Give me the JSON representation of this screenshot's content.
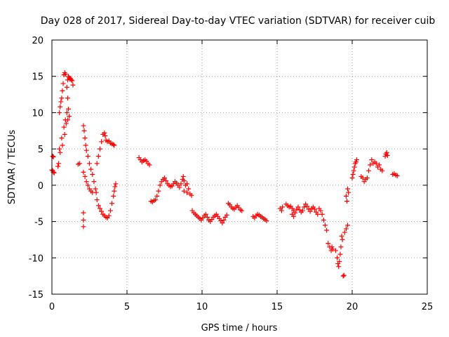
{
  "chart_data": {
    "type": "scatter",
    "title": "Day 028 of 2017, Sidereal Day-to-day VTEC variation (SDTVAR) for receiver cuib",
    "xlabel": "GPS time / hours",
    "ylabel": "SDTVAR / TECUs",
    "xlim": [
      0,
      25
    ],
    "ylim": [
      -15,
      20
    ],
    "xticks": [
      "0",
      "5",
      "10",
      "15",
      "20",
      "25"
    ],
    "yticks": [
      "-15",
      "-10",
      "-5",
      "0",
      "5",
      "10",
      "15",
      "20"
    ],
    "grid": true,
    "marker": "+",
    "color": "#ff0000",
    "series": [
      {
        "name": "SDTVAR",
        "points": [
          [
            0.0,
            2.1
          ],
          [
            0.05,
            2.0
          ],
          [
            0.1,
            1.8
          ],
          [
            0.15,
            1.7
          ],
          [
            0.05,
            4.0
          ],
          [
            0.1,
            3.9
          ],
          [
            0.4,
            2.6
          ],
          [
            0.45,
            3.0
          ],
          [
            0.5,
            5.0
          ],
          [
            0.55,
            4.5
          ],
          [
            0.5,
            10.0
          ],
          [
            0.55,
            10.8
          ],
          [
            0.6,
            11.5
          ],
          [
            0.65,
            12.0
          ],
          [
            0.7,
            13.0
          ],
          [
            0.65,
            6.5
          ],
          [
            0.7,
            5.5
          ],
          [
            0.75,
            14.0
          ],
          [
            0.8,
            15.2
          ],
          [
            0.85,
            15.5
          ],
          [
            0.9,
            15.3
          ],
          [
            0.8,
            8.0
          ],
          [
            0.85,
            7.0
          ],
          [
            0.9,
            9.0
          ],
          [
            0.95,
            8.5
          ],
          [
            1.0,
            10.0
          ],
          [
            1.05,
            12.0
          ],
          [
            1.0,
            13.5
          ],
          [
            1.05,
            14.5
          ],
          [
            1.1,
            15.0
          ],
          [
            1.15,
            14.8
          ],
          [
            1.2,
            14.6
          ],
          [
            1.25,
            14.7
          ],
          [
            1.3,
            14.5
          ],
          [
            1.35,
            14.4
          ],
          [
            1.4,
            13.8
          ],
          [
            1.05,
            9.0
          ],
          [
            1.1,
            10.5
          ],
          [
            1.15,
            9.5
          ],
          [
            1.75,
            2.9
          ],
          [
            1.85,
            3.0
          ],
          [
            2.1,
            8.2
          ],
          [
            2.15,
            7.5
          ],
          [
            2.2,
            6.5
          ],
          [
            2.25,
            5.5
          ],
          [
            2.3,
            4.8
          ],
          [
            2.4,
            4.0
          ],
          [
            2.5,
            3.0
          ],
          [
            2.6,
            2.2
          ],
          [
            2.7,
            1.5
          ],
          [
            2.8,
            0.5
          ],
          [
            2.9,
            -0.5
          ],
          [
            2.95,
            -1.0
          ],
          [
            3.0,
            -2.0
          ],
          [
            3.1,
            -2.8
          ],
          [
            3.2,
            -3.2
          ],
          [
            3.3,
            -3.6
          ],
          [
            3.4,
            -4.0
          ],
          [
            3.5,
            -4.2
          ],
          [
            3.6,
            -4.4
          ],
          [
            3.7,
            -4.5
          ],
          [
            3.8,
            -4.2
          ],
          [
            3.9,
            -3.5
          ],
          [
            4.0,
            -2.5
          ],
          [
            4.1,
            -1.5
          ],
          [
            4.15,
            -0.8
          ],
          [
            4.2,
            -0.2
          ],
          [
            4.25,
            0.2
          ],
          [
            2.1,
            1.8
          ],
          [
            2.2,
            1.2
          ],
          [
            2.3,
            0.5
          ],
          [
            2.4,
            0.0
          ],
          [
            2.5,
            -0.5
          ],
          [
            2.6,
            -0.8
          ],
          [
            2.7,
            -1.0
          ],
          [
            2.1,
            -3.8
          ],
          [
            2.1,
            -4.8
          ],
          [
            2.1,
            -5.7
          ],
          [
            3.0,
            3.0
          ],
          [
            3.1,
            4.0
          ],
          [
            3.2,
            5.0
          ],
          [
            3.3,
            6.0
          ],
          [
            3.4,
            7.0
          ],
          [
            3.5,
            7.2
          ],
          [
            3.55,
            6.8
          ],
          [
            3.6,
            6.2
          ],
          [
            3.7,
            6.0
          ],
          [
            3.8,
            6.1
          ],
          [
            3.9,
            5.8
          ],
          [
            4.0,
            5.7
          ],
          [
            4.1,
            5.6
          ],
          [
            4.15,
            5.5
          ],
          [
            5.8,
            3.8
          ],
          [
            5.9,
            3.5
          ],
          [
            6.0,
            3.2
          ],
          [
            6.1,
            3.4
          ],
          [
            6.2,
            3.5
          ],
          [
            6.3,
            3.3
          ],
          [
            6.4,
            3.0
          ],
          [
            6.5,
            2.8
          ],
          [
            6.6,
            -2.2
          ],
          [
            6.7,
            -2.3
          ],
          [
            6.8,
            -2.1
          ],
          [
            6.9,
            -2.0
          ],
          [
            7.0,
            -1.5
          ],
          [
            7.1,
            -0.8
          ],
          [
            7.2,
            0.0
          ],
          [
            7.3,
            0.5
          ],
          [
            7.4,
            0.8
          ],
          [
            7.5,
            1.0
          ],
          [
            7.6,
            0.6
          ],
          [
            7.7,
            0.2
          ],
          [
            7.8,
            0.0
          ],
          [
            7.9,
            -0.2
          ],
          [
            8.0,
            -0.1
          ],
          [
            8.1,
            0.2
          ],
          [
            8.2,
            0.5
          ],
          [
            8.3,
            0.3
          ],
          [
            8.4,
            0.0
          ],
          [
            8.5,
            -0.3
          ],
          [
            8.6,
            0.2
          ],
          [
            8.7,
            0.8
          ],
          [
            8.75,
            1.2
          ],
          [
            8.8,
            0.6
          ],
          [
            8.9,
            0.0
          ],
          [
            9.0,
            0.2
          ],
          [
            9.1,
            -0.5
          ],
          [
            8.8,
            -0.8
          ],
          [
            9.0,
            -1.0
          ],
          [
            9.2,
            -1.2
          ],
          [
            9.3,
            -1.4
          ],
          [
            9.35,
            -3.5
          ],
          [
            9.45,
            -3.8
          ],
          [
            9.55,
            -4.0
          ],
          [
            9.65,
            -4.2
          ],
          [
            9.75,
            -4.4
          ],
          [
            9.85,
            -4.6
          ],
          [
            9.95,
            -4.8
          ],
          [
            10.05,
            -4.5
          ],
          [
            10.15,
            -4.2
          ],
          [
            10.25,
            -4.0
          ],
          [
            10.35,
            -4.4
          ],
          [
            10.45,
            -4.8
          ],
          [
            10.55,
            -5.0
          ],
          [
            10.65,
            -4.7
          ],
          [
            10.75,
            -4.4
          ],
          [
            10.85,
            -4.2
          ],
          [
            10.95,
            -4.0
          ],
          [
            11.05,
            -4.3
          ],
          [
            11.15,
            -4.6
          ],
          [
            11.25,
            -4.9
          ],
          [
            11.35,
            -5.2
          ],
          [
            11.45,
            -4.8
          ],
          [
            11.55,
            -4.4
          ],
          [
            11.65,
            -4.1
          ],
          [
            11.75,
            -2.5
          ],
          [
            11.85,
            -2.7
          ],
          [
            11.95,
            -3.0
          ],
          [
            12.05,
            -3.2
          ],
          [
            12.15,
            -3.3
          ],
          [
            12.25,
            -3.0
          ],
          [
            12.35,
            -2.8
          ],
          [
            12.45,
            -3.1
          ],
          [
            12.55,
            -3.4
          ],
          [
            12.65,
            -3.5
          ],
          [
            13.4,
            -4.3
          ],
          [
            13.5,
            -4.5
          ],
          [
            13.6,
            -4.2
          ],
          [
            13.7,
            -4.0
          ],
          [
            13.8,
            -4.1
          ],
          [
            13.9,
            -4.3
          ],
          [
            14.0,
            -4.4
          ],
          [
            14.1,
            -4.6
          ],
          [
            14.2,
            -4.7
          ],
          [
            14.3,
            -4.9
          ],
          [
            15.2,
            -3.2
          ],
          [
            15.3,
            -3.5
          ],
          [
            15.35,
            -3.0
          ],
          [
            15.6,
            -2.6
          ],
          [
            15.7,
            -2.8
          ],
          [
            15.8,
            -3.0
          ],
          [
            15.9,
            -2.9
          ],
          [
            16.0,
            -3.2
          ],
          [
            16.1,
            -3.5
          ],
          [
            16.2,
            -3.8
          ],
          [
            16.3,
            -3.3
          ],
          [
            16.4,
            -3.0
          ],
          [
            16.5,
            -3.4
          ],
          [
            16.6,
            -3.7
          ],
          [
            16.7,
            -3.5
          ],
          [
            16.8,
            -3.0
          ],
          [
            16.9,
            -2.6
          ],
          [
            17.0,
            -2.9
          ],
          [
            17.1,
            -3.3
          ],
          [
            17.2,
            -3.6
          ],
          [
            17.3,
            -3.2
          ],
          [
            17.4,
            -3.0
          ],
          [
            17.5,
            -3.3
          ],
          [
            17.6,
            -3.7
          ],
          [
            17.7,
            -4.0
          ],
          [
            16.0,
            -4.0
          ],
          [
            16.1,
            -4.3
          ],
          [
            17.8,
            -3.2
          ],
          [
            17.9,
            -3.5
          ],
          [
            18.0,
            -4.0
          ],
          [
            18.1,
            -4.8
          ],
          [
            18.2,
            -5.5
          ],
          [
            18.3,
            -6.2
          ],
          [
            18.4,
            -8.0
          ],
          [
            18.5,
            -8.5
          ],
          [
            18.6,
            -9.0
          ],
          [
            18.65,
            -8.5
          ],
          [
            18.7,
            -8.8
          ],
          [
            18.9,
            -9.0
          ],
          [
            19.0,
            -10.0
          ],
          [
            19.05,
            -10.8
          ],
          [
            19.1,
            -11.2
          ],
          [
            19.15,
            -10.5
          ],
          [
            19.2,
            -9.5
          ],
          [
            19.25,
            -8.5
          ],
          [
            19.3,
            -7.0
          ],
          [
            19.35,
            -7.5
          ],
          [
            19.4,
            -12.5
          ],
          [
            19.45,
            -12.4
          ],
          [
            19.5,
            -6.5
          ],
          [
            19.6,
            -6.0
          ],
          [
            19.7,
            -5.5
          ],
          [
            19.6,
            -1.5
          ],
          [
            19.65,
            -2.2
          ],
          [
            19.7,
            -0.5
          ],
          [
            19.75,
            -1.0
          ],
          [
            20.0,
            1.0
          ],
          [
            20.05,
            1.5
          ],
          [
            20.1,
            2.0
          ],
          [
            20.15,
            2.5
          ],
          [
            20.2,
            3.0
          ],
          [
            20.25,
            3.2
          ],
          [
            20.3,
            3.5
          ],
          [
            20.6,
            1.2
          ],
          [
            20.7,
            1.0
          ],
          [
            20.8,
            0.5
          ],
          [
            20.9,
            0.8
          ],
          [
            21.0,
            1.0
          ],
          [
            21.1,
            2.0
          ],
          [
            21.2,
            2.8
          ],
          [
            21.3,
            3.5
          ],
          [
            21.4,
            3.0
          ],
          [
            21.5,
            3.2
          ],
          [
            21.6,
            3.0
          ],
          [
            21.7,
            2.5
          ],
          [
            21.8,
            2.8
          ],
          [
            21.9,
            2.2
          ],
          [
            22.0,
            2.0
          ],
          [
            22.2,
            4.0
          ],
          [
            22.25,
            4.3
          ],
          [
            22.3,
            4.5
          ],
          [
            22.35,
            4.1
          ],
          [
            22.7,
            1.5
          ],
          [
            22.8,
            1.6
          ],
          [
            22.9,
            1.4
          ],
          [
            23.0,
            1.3
          ]
        ]
      }
    ]
  }
}
